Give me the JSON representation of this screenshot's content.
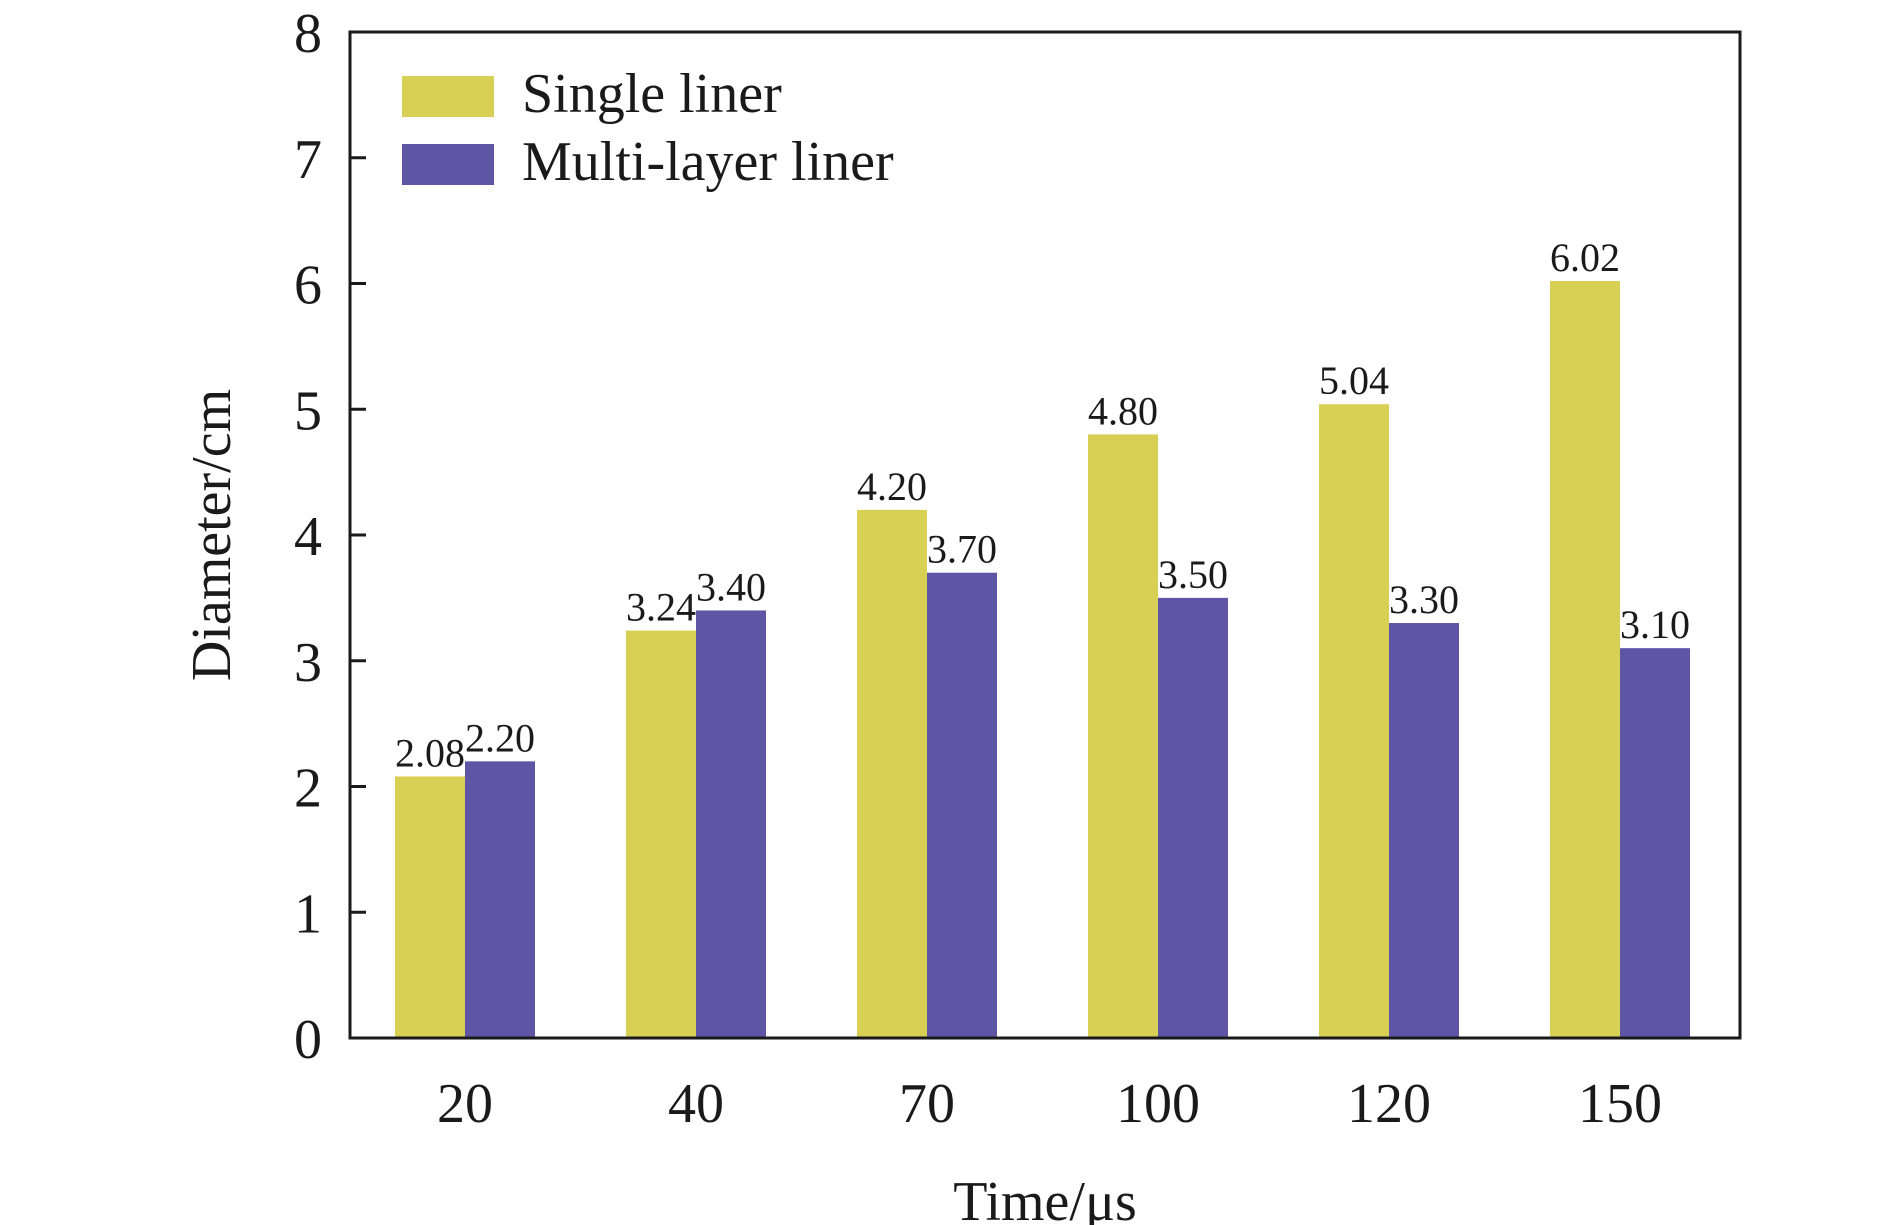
{
  "chart_data": {
    "type": "bar",
    "xlabel": "Time/μs",
    "ylabel": "Diameter/cm",
    "categories": [
      "20",
      "40",
      "70",
      "100",
      "120",
      "150"
    ],
    "ylim": [
      0,
      8
    ],
    "yticks": [
      "0",
      "1",
      "2",
      "3",
      "4",
      "5",
      "6",
      "7",
      "8"
    ],
    "grid": false,
    "legend_position": "top-left",
    "series": [
      {
        "name": "Single liner",
        "color": "#D8CF55",
        "values": [
          2.08,
          3.24,
          4.2,
          4.8,
          5.04,
          6.02
        ],
        "labels": [
          "2.08",
          "3.24",
          "4.20",
          "4.80",
          "5.04",
          "6.02"
        ]
      },
      {
        "name": "Multi-layer liner",
        "color": "#5F55A5",
        "values": [
          2.2,
          3.4,
          3.7,
          3.5,
          3.3,
          3.1
        ],
        "labels": [
          "2.20",
          "3.40",
          "3.70",
          "3.50",
          "3.30",
          "3.10"
        ]
      }
    ]
  }
}
